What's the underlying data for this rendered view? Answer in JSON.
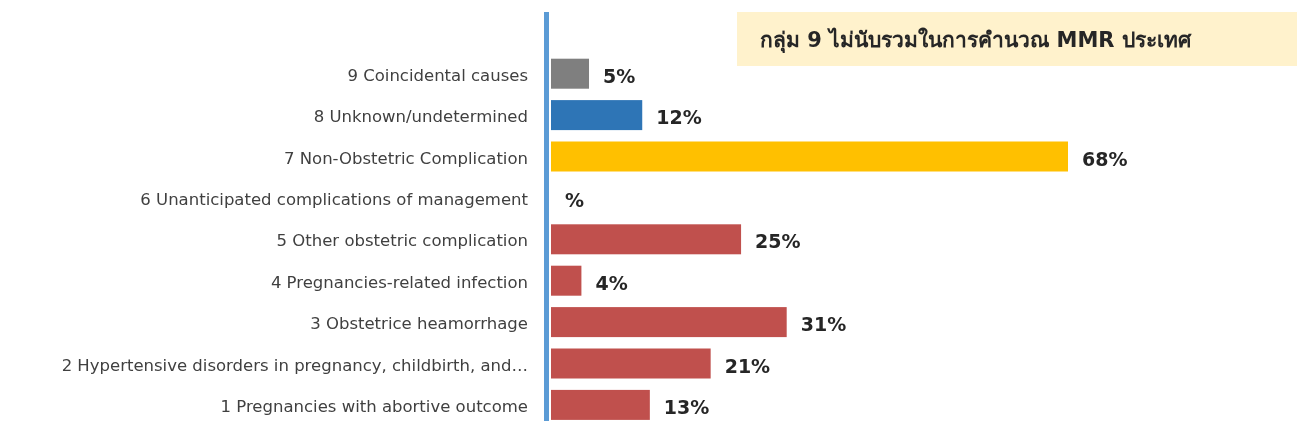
{
  "chart_data": {
    "type": "bar",
    "orientation": "horizontal",
    "categories": [
      "9 Coincidental causes",
      "8 Unknown/undetermined",
      "7  Non-Obstetric Complication",
      "6 Unanticipated complications of management",
      "5 Other obstetric complication",
      "4 Pregnancies-related infection",
      "3 Obstetrice heamorrhage",
      "2 Hypertensive disorders in pregnancy, childbirth, and…",
      "1 Pregnancies with abortive outcome"
    ],
    "values": [
      5,
      12,
      68,
      0,
      25,
      4,
      31,
      21,
      13
    ],
    "colors": [
      "#7f7f7f",
      "#2e75b6",
      "#ffc000",
      "#c0504d",
      "#c0504d",
      "#c0504d",
      "#c0504d",
      "#c0504d",
      "#c0504d"
    ],
    "value_labels": [
      "5%",
      "12%",
      "68%",
      "%",
      "25%",
      "4%",
      "31%",
      "21%",
      "13%"
    ],
    "annotations": [
      "กลุ่ม 9 ไม่นับรวมในการคำนวณ MMR ประเทศ"
    ]
  }
}
